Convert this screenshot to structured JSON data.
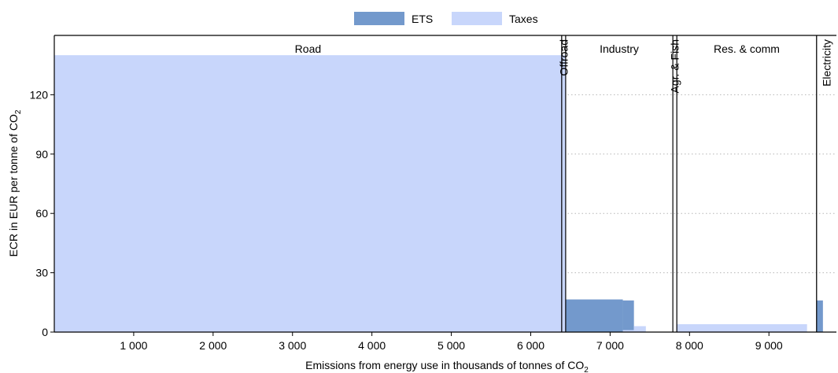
{
  "chart_data": {
    "type": "bar",
    "xlabel": "Emissions from energy use in thousands of tonnes of CO",
    "xlabel_sub": "2",
    "ylabel": "ECR in EUR per tonne of CO",
    "ylabel_sub": "2",
    "xlim": [
      0,
      9850
    ],
    "ylim": [
      0,
      150
    ],
    "x_ticks": [
      1000,
      2000,
      3000,
      4000,
      5000,
      6000,
      7000,
      8000,
      9000
    ],
    "x_tick_labels": [
      "1 000",
      "2 000",
      "3 000",
      "4 000",
      "5 000",
      "6 000",
      "7 000",
      "8 000",
      "9 000"
    ],
    "y_ticks": [
      0,
      30,
      60,
      90,
      120
    ],
    "y_tick_labels": [
      "0",
      "30",
      "60",
      "90",
      "120"
    ],
    "grid": "horizontal dotted",
    "legend_position": "top-center",
    "legend": [
      {
        "name": "ETS",
        "color": "#7399cc"
      },
      {
        "name": "Taxes",
        "color": "#c8d6fb"
      }
    ],
    "sectors": [
      {
        "name": "Road",
        "start": 0,
        "end": 6390,
        "label_rotated": false
      },
      {
        "name": "Offroad",
        "start": 6390,
        "end": 6440,
        "label_rotated": true
      },
      {
        "name": "Industry",
        "start": 6440,
        "end": 7790,
        "label_rotated": false
      },
      {
        "name": "Agr. & Fish",
        "start": 7790,
        "end": 7840,
        "label_rotated": true
      },
      {
        "name": "Res. & comm",
        "start": 7840,
        "end": 9600,
        "label_rotated": false
      },
      {
        "name": "Electricity",
        "start": 9600,
        "end": 9850,
        "label_rotated": true
      }
    ],
    "bars": [
      {
        "series": "Taxes",
        "sector": "Road",
        "x0": 0,
        "x1": 6390,
        "y0": 0,
        "y1": 140
      },
      {
        "series": "Taxes",
        "sector": "Offroad",
        "x0": 6390,
        "x1": 6440,
        "y0": 0,
        "y1": 140
      },
      {
        "series": "ETS",
        "sector": "Industry",
        "x0": 6440,
        "x1": 7160,
        "y0": 0,
        "y1": 16.5
      },
      {
        "series": "ETS",
        "sector": "Industry",
        "x0": 7160,
        "x1": 7300,
        "y0": 0,
        "y1": 16
      },
      {
        "series": "Taxes",
        "sector": "Industry",
        "x0": 7160,
        "x1": 7300,
        "y0": 0,
        "y1": 1
      },
      {
        "series": "Taxes",
        "sector": "Industry",
        "x0": 7300,
        "x1": 7450,
        "y0": 0,
        "y1": 3
      },
      {
        "series": "Taxes",
        "sector": "Res. & comm",
        "x0": 7840,
        "x1": 9480,
        "y0": 0,
        "y1": 4
      },
      {
        "series": "ETS",
        "sector": "Electricity",
        "x0": 9600,
        "x1": 9680,
        "y0": 0,
        "y1": 16
      }
    ]
  }
}
